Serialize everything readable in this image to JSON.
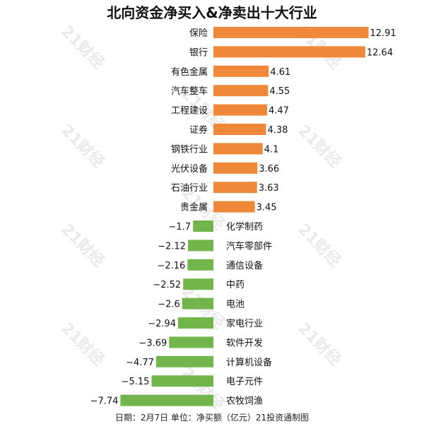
{
  "title": "北向资金净买入&净卖出十大行业",
  "footer": "日期：2月7日 单位：净买额（亿元）21投资通制图",
  "watermark_text": "21财经",
  "chart_data": {
    "type": "bar",
    "orientation": "horizontal",
    "categories": [
      "保险",
      "银行",
      "有色金属",
      "汽车整车",
      "工程建设",
      "证券",
      "钢铁行业",
      "光伏设备",
      "石油行业",
      "贵金属",
      "化学制药",
      "汽车零部件",
      "通信设备",
      "中药",
      "电池",
      "家电行业",
      "软件开发",
      "计算机设备",
      "电子元件",
      "农牧饲渔"
    ],
    "values": [
      12.91,
      12.64,
      4.61,
      4.55,
      4.47,
      4.38,
      4.1,
      3.66,
      3.63,
      3.45,
      -1.7,
      -2.12,
      -2.16,
      -2.52,
      -2.6,
      -2.94,
      -3.69,
      -4.77,
      -5.15,
      -7.74
    ],
    "value_labels": [
      "12.91",
      "12.64",
      "4.61",
      "4.55",
      "4.47",
      "4.38",
      "4.1",
      "3.66",
      "3.63",
      "3.45",
      "−1.7",
      "−2.12",
      "−2.16",
      "−2.52",
      "−2.6",
      "−2.94",
      "−3.69",
      "−4.77",
      "−5.15",
      "−7.74"
    ],
    "colors": {
      "positive": "#f0883a",
      "negative": "#72b54a"
    },
    "xlim": [
      -7.74,
      12.91
    ],
    "grid": false,
    "legend": "none"
  }
}
